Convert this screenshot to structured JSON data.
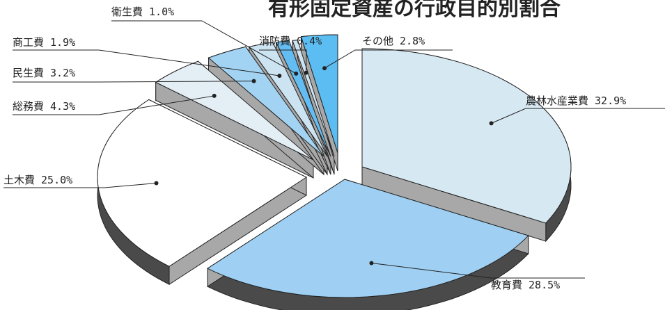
{
  "chart_data": {
    "type": "pie",
    "title": "有形固定資産の行政目的別割合",
    "slices": [
      {
        "name": "農林水産業費",
        "value": 32.9,
        "label": "農林水産業費 32.9%",
        "color": "#d6e8f2"
      },
      {
        "name": "教育費",
        "value": 28.5,
        "label": "教育費 28.5%",
        "color": "#9fd0f3"
      },
      {
        "name": "土木費",
        "value": 25.0,
        "label": "土木費 25.0%",
        "color": "#ffffff"
      },
      {
        "name": "総務費",
        "value": 4.3,
        "label": "総務費 4.3%",
        "color": "#e3eef5"
      },
      {
        "name": "民生費",
        "value": 3.2,
        "label": "民生費 3.2%",
        "color": "#a3d3f3"
      },
      {
        "name": "商工費",
        "value": 1.9,
        "label": "商工費 1.9%",
        "color": "#cce3f1"
      },
      {
        "name": "衛生費",
        "value": 1.0,
        "label": "衛生費 1.0%",
        "color": "#63bdf2"
      },
      {
        "name": "消防費",
        "value": 0.4,
        "label": "消防費 0.4%",
        "color": "#cfe4f2"
      },
      {
        "name": "その他",
        "value": 2.8,
        "label": "その他 2.8%",
        "color": "#5bbdf2"
      }
    ],
    "legend": "none"
  }
}
